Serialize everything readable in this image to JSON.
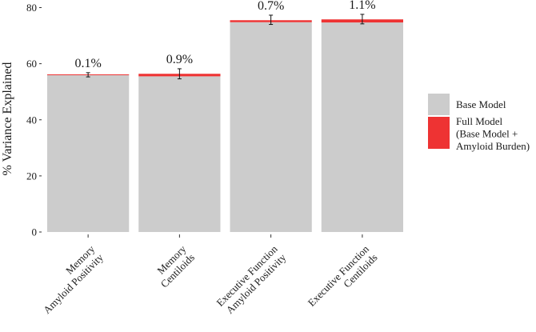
{
  "chart_data": {
    "type": "bar",
    "stacked": true,
    "ylabel": "% Variance Explained",
    "xlabel": "",
    "ylim": [
      0,
      80
    ],
    "yticks": [
      0,
      20,
      40,
      60,
      80
    ],
    "grid": false,
    "legend_position": "right",
    "categories": [
      [
        "Memory",
        "Amyloid Positivity"
      ],
      [
        "Memory",
        "Centiloids"
      ],
      [
        "Executive Function",
        "Amyloid Positivity"
      ],
      [
        "Executive Function",
        "Centiloids"
      ]
    ],
    "series": [
      {
        "name": "Base Model",
        "color": "#cccccc",
        "values": [
          55.9,
          55.5,
          74.8,
          74.7
        ]
      },
      {
        "name": "Full Model (Base Model + Amyloid Burden)",
        "name_lines": [
          "Full Model",
          "(Base Model +",
          "Amyloid Burden)"
        ],
        "color": "#ee3333",
        "values": [
          0.1,
          0.9,
          0.7,
          1.1
        ]
      }
    ],
    "error_bars": [
      {
        "center": 56.0,
        "low": 55.3,
        "high": 56.8
      },
      {
        "center": 56.4,
        "low": 54.6,
        "high": 58.2
      },
      {
        "center": 75.5,
        "low": 74.0,
        "high": 77.3
      },
      {
        "center": 75.8,
        "low": 74.2,
        "high": 77.6
      }
    ],
    "data_labels": [
      "0.1%",
      "0.9%",
      "0.7%",
      "1.1%"
    ]
  }
}
